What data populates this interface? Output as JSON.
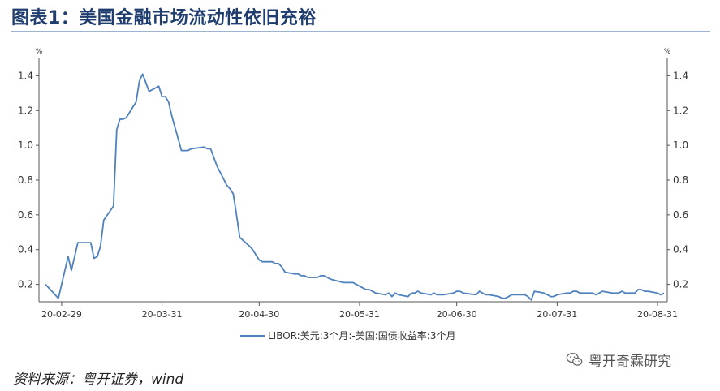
{
  "header": {
    "title": "图表1：美国金融市场流动性依旧充裕"
  },
  "footer": {
    "source": "资料来源：粤开证券，wind",
    "watermark": "粤开奇霖研究",
    "watermark_icon": "wechat-icon"
  },
  "colors": {
    "line": "#4f81bd",
    "title": "#1f3d6e"
  },
  "chart_data": {
    "type": "line",
    "left_unit": "%",
    "right_unit": "%",
    "y_ticks": [
      0.2,
      0.4,
      0.6,
      0.8,
      1.0,
      1.2,
      1.4
    ],
    "y_tick_labels": [
      "0.2",
      "0.4",
      "0.6",
      "0.8",
      "1.0",
      "1.2",
      "1.4"
    ],
    "ylim": [
      0.1,
      1.5
    ],
    "x_ticks": [
      "20-02-29",
      "20-03-31",
      "20-04-30",
      "20-05-31",
      "20-06-30",
      "20-07-31",
      "20-08-31"
    ],
    "grid": false,
    "legend_position": "bottom",
    "series": [
      {
        "name": "LIBOR:美元:3个月:-美国:国债收益率:3个月",
        "x": [
          "2020-02-24",
          "2020-02-25",
          "2020-02-26",
          "2020-02-27",
          "2020-02-28",
          "2020-03-02",
          "2020-03-03",
          "2020-03-04",
          "2020-03-05",
          "2020-03-06",
          "2020-03-09",
          "2020-03-10",
          "2020-03-11",
          "2020-03-12",
          "2020-03-13",
          "2020-03-16",
          "2020-03-17",
          "2020-03-18",
          "2020-03-19",
          "2020-03-20",
          "2020-03-23",
          "2020-03-24",
          "2020-03-25",
          "2020-03-26",
          "2020-03-27",
          "2020-03-30",
          "2020-03-31",
          "2020-04-01",
          "2020-04-02",
          "2020-04-03",
          "2020-04-06",
          "2020-04-07",
          "2020-04-08",
          "2020-04-09",
          "2020-04-13",
          "2020-04-14",
          "2020-04-15",
          "2020-04-16",
          "2020-04-17",
          "2020-04-20",
          "2020-04-21",
          "2020-04-22",
          "2020-04-23",
          "2020-04-24",
          "2020-04-27",
          "2020-04-28",
          "2020-04-29",
          "2020-04-30",
          "2020-05-01",
          "2020-05-04",
          "2020-05-05",
          "2020-05-06",
          "2020-05-07",
          "2020-05-08",
          "2020-05-11",
          "2020-05-12",
          "2020-05-13",
          "2020-05-14",
          "2020-05-15",
          "2020-05-18",
          "2020-05-19",
          "2020-05-20",
          "2020-05-21",
          "2020-05-22",
          "2020-05-26",
          "2020-05-27",
          "2020-05-28",
          "2020-05-29",
          "2020-06-01",
          "2020-06-02",
          "2020-06-03",
          "2020-06-04",
          "2020-06-05",
          "2020-06-08",
          "2020-06-09",
          "2020-06-10",
          "2020-06-11",
          "2020-06-12",
          "2020-06-15",
          "2020-06-16",
          "2020-06-17",
          "2020-06-18",
          "2020-06-19",
          "2020-06-22",
          "2020-06-23",
          "2020-06-24",
          "2020-06-25",
          "2020-06-26",
          "2020-06-29",
          "2020-06-30",
          "2020-07-01",
          "2020-07-02",
          "2020-07-06",
          "2020-07-07",
          "2020-07-08",
          "2020-07-09",
          "2020-07-10",
          "2020-07-13",
          "2020-07-14",
          "2020-07-15",
          "2020-07-16",
          "2020-07-17",
          "2020-07-20",
          "2020-07-21",
          "2020-07-22",
          "2020-07-23",
          "2020-07-24",
          "2020-07-27",
          "2020-07-28",
          "2020-07-29",
          "2020-07-30",
          "2020-07-31",
          "2020-08-03",
          "2020-08-04",
          "2020-08-05",
          "2020-08-06",
          "2020-08-07",
          "2020-08-10",
          "2020-08-11",
          "2020-08-12",
          "2020-08-13",
          "2020-08-14",
          "2020-08-17",
          "2020-08-18",
          "2020-08-19",
          "2020-08-20",
          "2020-08-21",
          "2020-08-24",
          "2020-08-25",
          "2020-08-26",
          "2020-08-27",
          "2020-08-28",
          "2020-08-31",
          "2020-09-01",
          "2020-09-02"
        ],
        "y": [
          0.2,
          0.18,
          0.16,
          0.14,
          0.12,
          0.36,
          0.28,
          0.36,
          0.44,
          0.44,
          0.44,
          0.35,
          0.36,
          0.42,
          0.57,
          0.65,
          1.09,
          1.15,
          1.15,
          1.16,
          1.25,
          1.37,
          1.41,
          1.36,
          1.31,
          1.34,
          1.28,
          1.28,
          1.25,
          1.17,
          0.97,
          0.97,
          0.97,
          0.98,
          0.99,
          0.98,
          0.98,
          0.93,
          0.88,
          0.77,
          0.75,
          0.72,
          0.6,
          0.47,
          0.42,
          0.4,
          0.37,
          0.34,
          0.33,
          0.33,
          0.32,
          0.32,
          0.3,
          0.27,
          0.26,
          0.26,
          0.25,
          0.25,
          0.24,
          0.24,
          0.25,
          0.25,
          0.24,
          0.23,
          0.21,
          0.21,
          0.21,
          0.21,
          0.18,
          0.17,
          0.17,
          0.16,
          0.15,
          0.14,
          0.15,
          0.13,
          0.15,
          0.14,
          0.13,
          0.15,
          0.15,
          0.16,
          0.15,
          0.14,
          0.15,
          0.14,
          0.14,
          0.14,
          0.15,
          0.16,
          0.16,
          0.15,
          0.14,
          0.16,
          0.15,
          0.14,
          0.14,
          0.13,
          0.12,
          0.12,
          0.13,
          0.14,
          0.14,
          0.14,
          0.13,
          0.11,
          0.16,
          0.15,
          0.14,
          0.13,
          0.13,
          0.14,
          0.15,
          0.15,
          0.16,
          0.16,
          0.15,
          0.15,
          0.15,
          0.14,
          0.15,
          0.16,
          0.15,
          0.15,
          0.15,
          0.16,
          0.15,
          0.15,
          0.17,
          0.17,
          0.16,
          0.16,
          0.15,
          0.14,
          0.15
        ]
      }
    ]
  }
}
